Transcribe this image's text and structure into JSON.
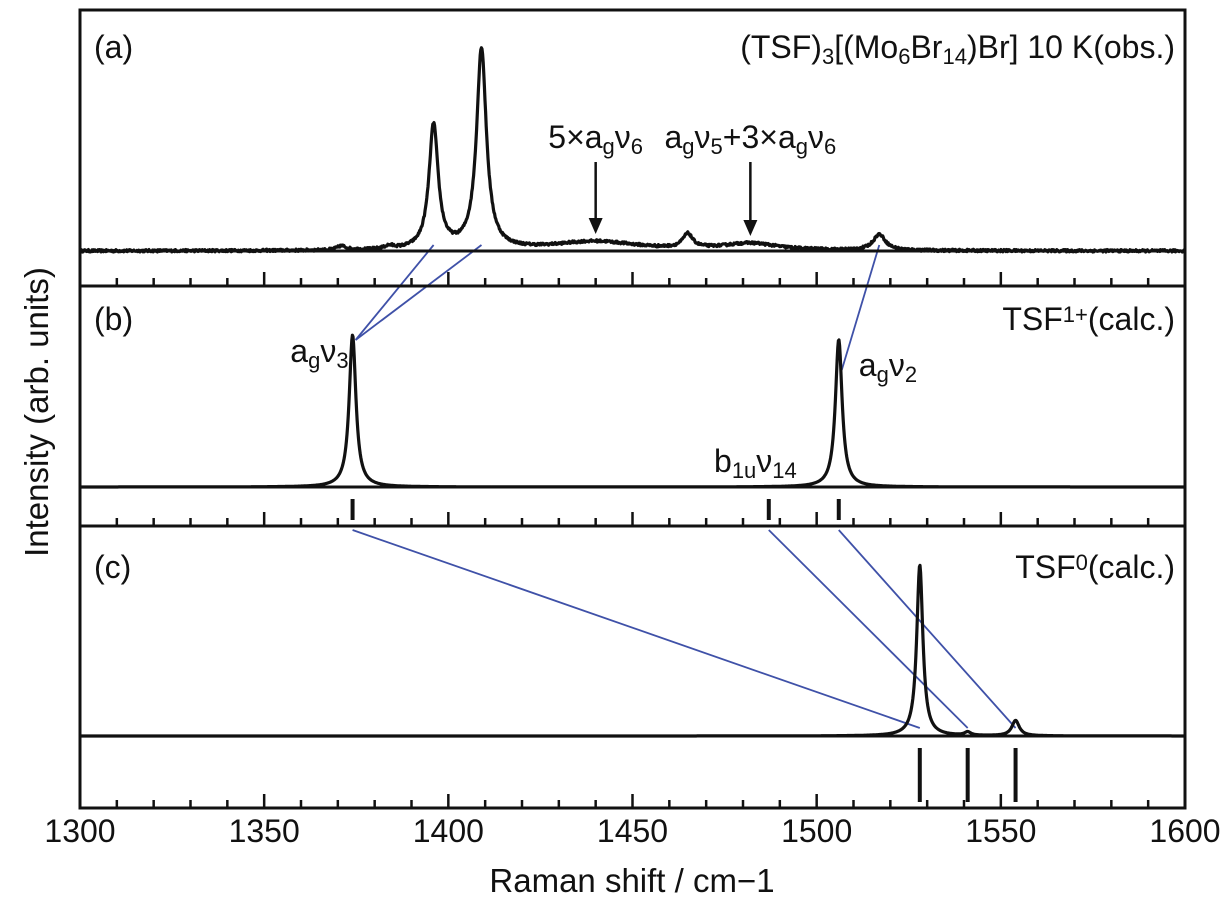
{
  "chart_data": {
    "type": "line",
    "xlabel": "Raman shift / cm−1",
    "ylabel": "Intensity (arb. units)",
    "xlim": [
      1300,
      1600
    ],
    "x_ticks": [
      "1300",
      "1350",
      "1400",
      "1450",
      "1500",
      "1550",
      "1600"
    ],
    "x_major_step": 50,
    "x_minor_step": 10,
    "grid": false,
    "colors": {
      "trace": "#111111",
      "correlation": "#3f51a8",
      "axis": "#111111"
    },
    "panels": [
      {
        "tag": "(a)",
        "title_parts": [
          {
            "t": "(TSF)",
            "s": "n"
          },
          {
            "t": "3",
            "s": "sub"
          },
          {
            "t": "[(Mo",
            "s": "n"
          },
          {
            "t": "6",
            "s": "sub"
          },
          {
            "t": "Br",
            "s": "n"
          },
          {
            "t": "14",
            "s": "sub"
          },
          {
            "t": ")Br] 10 K(obs.)",
            "s": "n"
          }
        ],
        "series": [
          {
            "kind": "spectrum",
            "noise": 0.012,
            "peaks": [
              {
                "x": 1371,
                "h": 0.02,
                "w": 1.5
              },
              {
                "x": 1384,
                "h": 0.015,
                "w": 1.5
              },
              {
                "x": 1396,
                "h": 0.62,
                "w": 1.5
              },
              {
                "x": 1409,
                "h": 1.0,
                "w": 1.6
              },
              {
                "x": 1440,
                "h": 0.045,
                "w": 14
              },
              {
                "x": 1465,
                "h": 0.07,
                "w": 1.6
              },
              {
                "x": 1482,
                "h": 0.035,
                "w": 9
              },
              {
                "x": 1517,
                "h": 0.08,
                "w": 2.0
              }
            ]
          }
        ],
        "annotations": [
          {
            "x": 1440,
            "y": 0.045,
            "parts": [
              {
                "t": "5×a",
                "s": "n"
              },
              {
                "t": "g",
                "s": "sub"
              },
              {
                "t": "ν",
                "s": "n"
              },
              {
                "t": "6",
                "s": "sub"
              }
            ]
          },
          {
            "x": 1482,
            "y": 0.035,
            "parts": [
              {
                "t": "a",
                "s": "n"
              },
              {
                "t": "g",
                "s": "sub"
              },
              {
                "t": "ν",
                "s": "n"
              },
              {
                "t": "5",
                "s": "sub"
              },
              {
                "t": "+3×a",
                "s": "n"
              },
              {
                "t": "g",
                "s": "sub"
              },
              {
                "t": "ν",
                "s": "n"
              },
              {
                "t": "6",
                "s": "sub"
              }
            ]
          }
        ]
      },
      {
        "tag": "(b)",
        "title_parts": [
          {
            "t": "TSF",
            "s": "n"
          },
          {
            "t": "1+",
            "s": "sup"
          },
          {
            "t": "(calc.)",
            "s": "n"
          }
        ],
        "series": [
          {
            "kind": "stick",
            "peaks": [
              {
                "x": 1374,
                "h": 1.0,
                "w": 1.1
              },
              {
                "x": 1487,
                "h": 0.0,
                "w": 1.1
              },
              {
                "x": 1506,
                "h": 0.97,
                "w": 1.1
              }
            ]
          }
        ],
        "mode_labels": [
          {
            "x": 1374,
            "parts": [
              {
                "t": "a",
                "s": "n"
              },
              {
                "t": "g",
                "s": "sub"
              },
              {
                "t": "ν",
                "s": "n"
              },
              {
                "t": "3",
                "s": "sub"
              }
            ]
          },
          {
            "x": 1506,
            "parts": [
              {
                "t": "a",
                "s": "n"
              },
              {
                "t": "g",
                "s": "sub"
              },
              {
                "t": "ν",
                "s": "n"
              },
              {
                "t": "2",
                "s": "sub"
              }
            ]
          },
          {
            "x": 1487,
            "parts": [
              {
                "t": "b",
                "s": "n"
              },
              {
                "t": "1u",
                "s": "sub"
              },
              {
                "t": "ν",
                "s": "n"
              },
              {
                "t": "14",
                "s": "sub"
              }
            ]
          }
        ],
        "mode_positions": [
          1374,
          1487,
          1506
        ]
      },
      {
        "tag": "(c)",
        "title_parts": [
          {
            "t": "TSF",
            "s": "n"
          },
          {
            "t": "0",
            "s": "sup"
          },
          {
            "t": "(calc.)",
            "s": "n"
          }
        ],
        "series": [
          {
            "kind": "stick",
            "peaks": [
              {
                "x": 1528,
                "h": 1.0,
                "w": 1.0
              },
              {
                "x": 1541,
                "h": 0.02,
                "w": 1.0
              },
              {
                "x": 1554,
                "h": 0.09,
                "w": 1.2
              }
            ]
          }
        ],
        "mode_positions": [
          1528,
          1541,
          1554
        ]
      }
    ],
    "correlations": [
      {
        "from_panel": 0,
        "from_x": 1396,
        "to_panel": 1,
        "to_x": 1374
      },
      {
        "from_panel": 0,
        "from_x": 1409,
        "to_panel": 1,
        "to_x": 1374
      },
      {
        "from_panel": 0,
        "from_x": 1517,
        "to_panel": 1,
        "to_x": 1506
      },
      {
        "from_panel": 1,
        "from_x": 1374,
        "to_panel": 2,
        "to_x": 1528
      },
      {
        "from_panel": 1,
        "from_x": 1487,
        "to_panel": 2,
        "to_x": 1541
      },
      {
        "from_panel": 1,
        "from_x": 1506,
        "to_panel": 2,
        "to_x": 1554
      }
    ]
  }
}
